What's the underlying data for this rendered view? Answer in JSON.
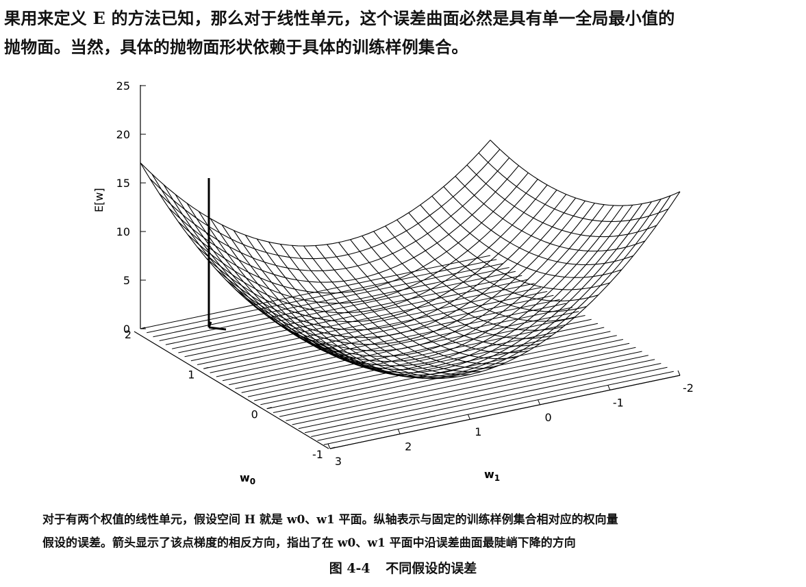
{
  "body_text": {
    "line1": "果用来定义 E 的方法已知，那么对于线性单元，这个误差曲面必然是具有单一全局最小值的",
    "line2": "抛物面。当然，具体的抛物面形状依赖于具体的训练样例集合。"
  },
  "chart_data": {
    "type": "surface",
    "zlabel": "E[w]",
    "xlabel": "w1",
    "ylabel": "w0",
    "z_ticks": [
      "0",
      "5",
      "10",
      "15",
      "20",
      "25"
    ],
    "w0_ticks": [
      "-1",
      "0",
      "1",
      "2"
    ],
    "w1_ticks": [
      "3",
      "2",
      "1",
      "0",
      "-1",
      "-2"
    ],
    "zlim": [
      0,
      25
    ],
    "w0_range": [
      -1,
      2
    ],
    "w1_range": [
      -2,
      3
    ],
    "wireframe": true,
    "has_gradient_arrow": true
  },
  "caption": {
    "line1": "对于有两个权值的线性单元，假设空间 H 就是 w0、w1 平面。纵轴表示与固定的训练样例集合相对应的权向量",
    "line2": "假设的误差。箭头显示了该点梯度的相反方向，指出了在 w0、w1 平面中沿误差曲面最陡峭下降的方向"
  },
  "figure_title": {
    "number": "图 4-4",
    "text": "不同假设的误差"
  }
}
